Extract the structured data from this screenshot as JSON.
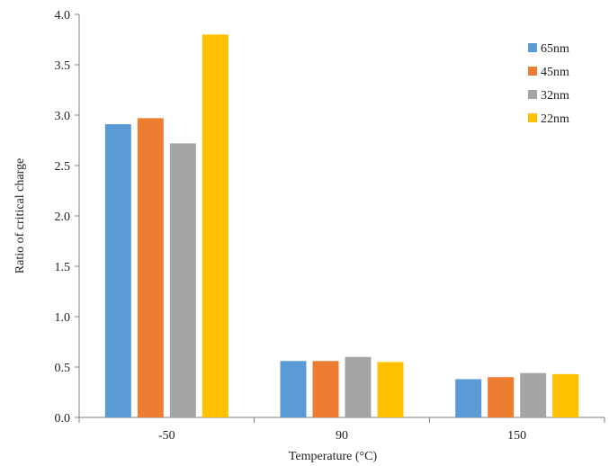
{
  "chart_data": {
    "type": "bar",
    "categories": [
      "-50",
      "90",
      "150"
    ],
    "series": [
      {
        "name": "65nm",
        "color": "#5B9BD5",
        "values": [
          2.91,
          0.56,
          0.38
        ]
      },
      {
        "name": "45nm",
        "color": "#ED7D31",
        "values": [
          2.97,
          0.56,
          0.4
        ]
      },
      {
        "name": "32nm",
        "color": "#A5A5A5",
        "values": [
          2.72,
          0.6,
          0.44
        ]
      },
      {
        "name": "22nm",
        "color": "#FFC000",
        "values": [
          3.8,
          0.55,
          0.43
        ]
      }
    ],
    "xlabel": "Temperature (°C)",
    "ylabel": "Ratio of critical charge",
    "ylim": [
      0,
      4.0
    ],
    "yticks": [
      "0.0",
      "0.5",
      "1.0",
      "1.5",
      "2.0",
      "2.5",
      "3.0",
      "3.5",
      "4.0"
    ],
    "grid": false,
    "legend_position": "top-right"
  }
}
